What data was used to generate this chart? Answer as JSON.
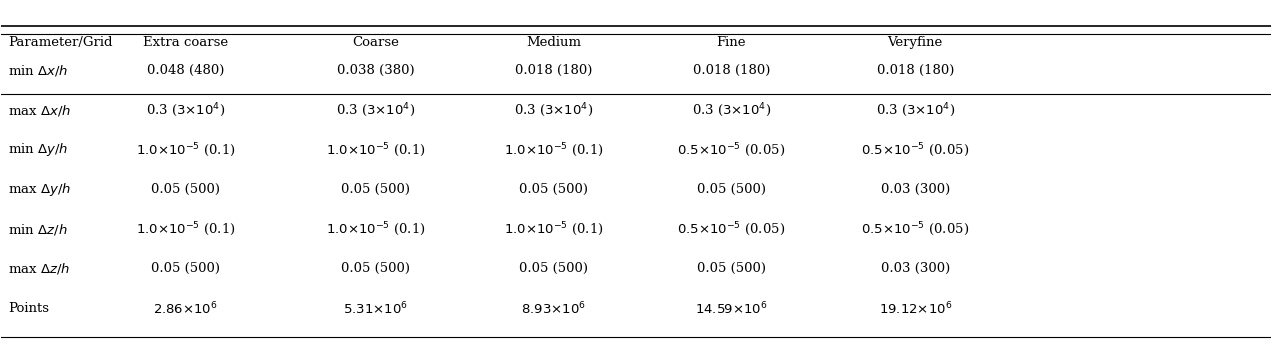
{
  "col_headers": [
    "Parameter/Grid",
    "Extra coarse",
    "Coarse",
    "Medium",
    "Fine",
    "Veryfine"
  ],
  "rows": [
    {
      "param": "min $\\Delta x/h$",
      "values": [
        "0.048 (480)",
        "0.038 (380)",
        "0.018 (180)",
        "0.018 (180)",
        "0.018 (180)"
      ]
    },
    {
      "param": "max $\\Delta x/h$",
      "values": [
        "0.3 ($3{\\times}10^4$)",
        "0.3 ($3{\\times}10^4$)",
        "0.3 ($3{\\times}10^4$)",
        "0.3 ($3{\\times}10^4$)",
        "0.3 ($3{\\times}10^4$)"
      ]
    },
    {
      "param": "min $\\Delta y/h$",
      "values": [
        "$1.0{\\times}10^{-5}$ (0.1)",
        "$1.0{\\times}10^{-5}$ (0.1)",
        "$1.0{\\times}10^{-5}$ (0.1)",
        "$0.5{\\times}10^{-5}$ (0.05)",
        "$0.5{\\times}10^{-5}$ (0.05)"
      ]
    },
    {
      "param": "max $\\Delta y/h$",
      "values": [
        "0.05 (500)",
        "0.05 (500)",
        "0.05 (500)",
        "0.05 (500)",
        "0.03 (300)"
      ]
    },
    {
      "param": "min $\\Delta z/h$",
      "values": [
        "$1.0{\\times}10^{-5}$ (0.1)",
        "$1.0{\\times}10^{-5}$ (0.1)",
        "$1.0{\\times}10^{-5}$ (0.1)",
        "$0.5{\\times}10^{-5}$ (0.05)",
        "$0.5{\\times}10^{-5}$ (0.05)"
      ]
    },
    {
      "param": "max $\\Delta z/h$",
      "values": [
        "0.05 (500)",
        "0.05 (500)",
        "0.05 (500)",
        "0.05 (500)",
        "0.03 (300)"
      ]
    },
    {
      "param": "Points",
      "values": [
        "$2.86{\\times}10^6$",
        "$5.31{\\times}10^6$",
        "$8.93{\\times}10^6$",
        "$14.59{\\times}10^6$",
        "$19.12{\\times}10^6$"
      ]
    }
  ],
  "bg_color": "#ffffff",
  "text_color": "#000000",
  "header_line_color": "#000000",
  "bottom_line_color": "#000000",
  "fontsize": 9.5,
  "header_fontsize": 9.5
}
